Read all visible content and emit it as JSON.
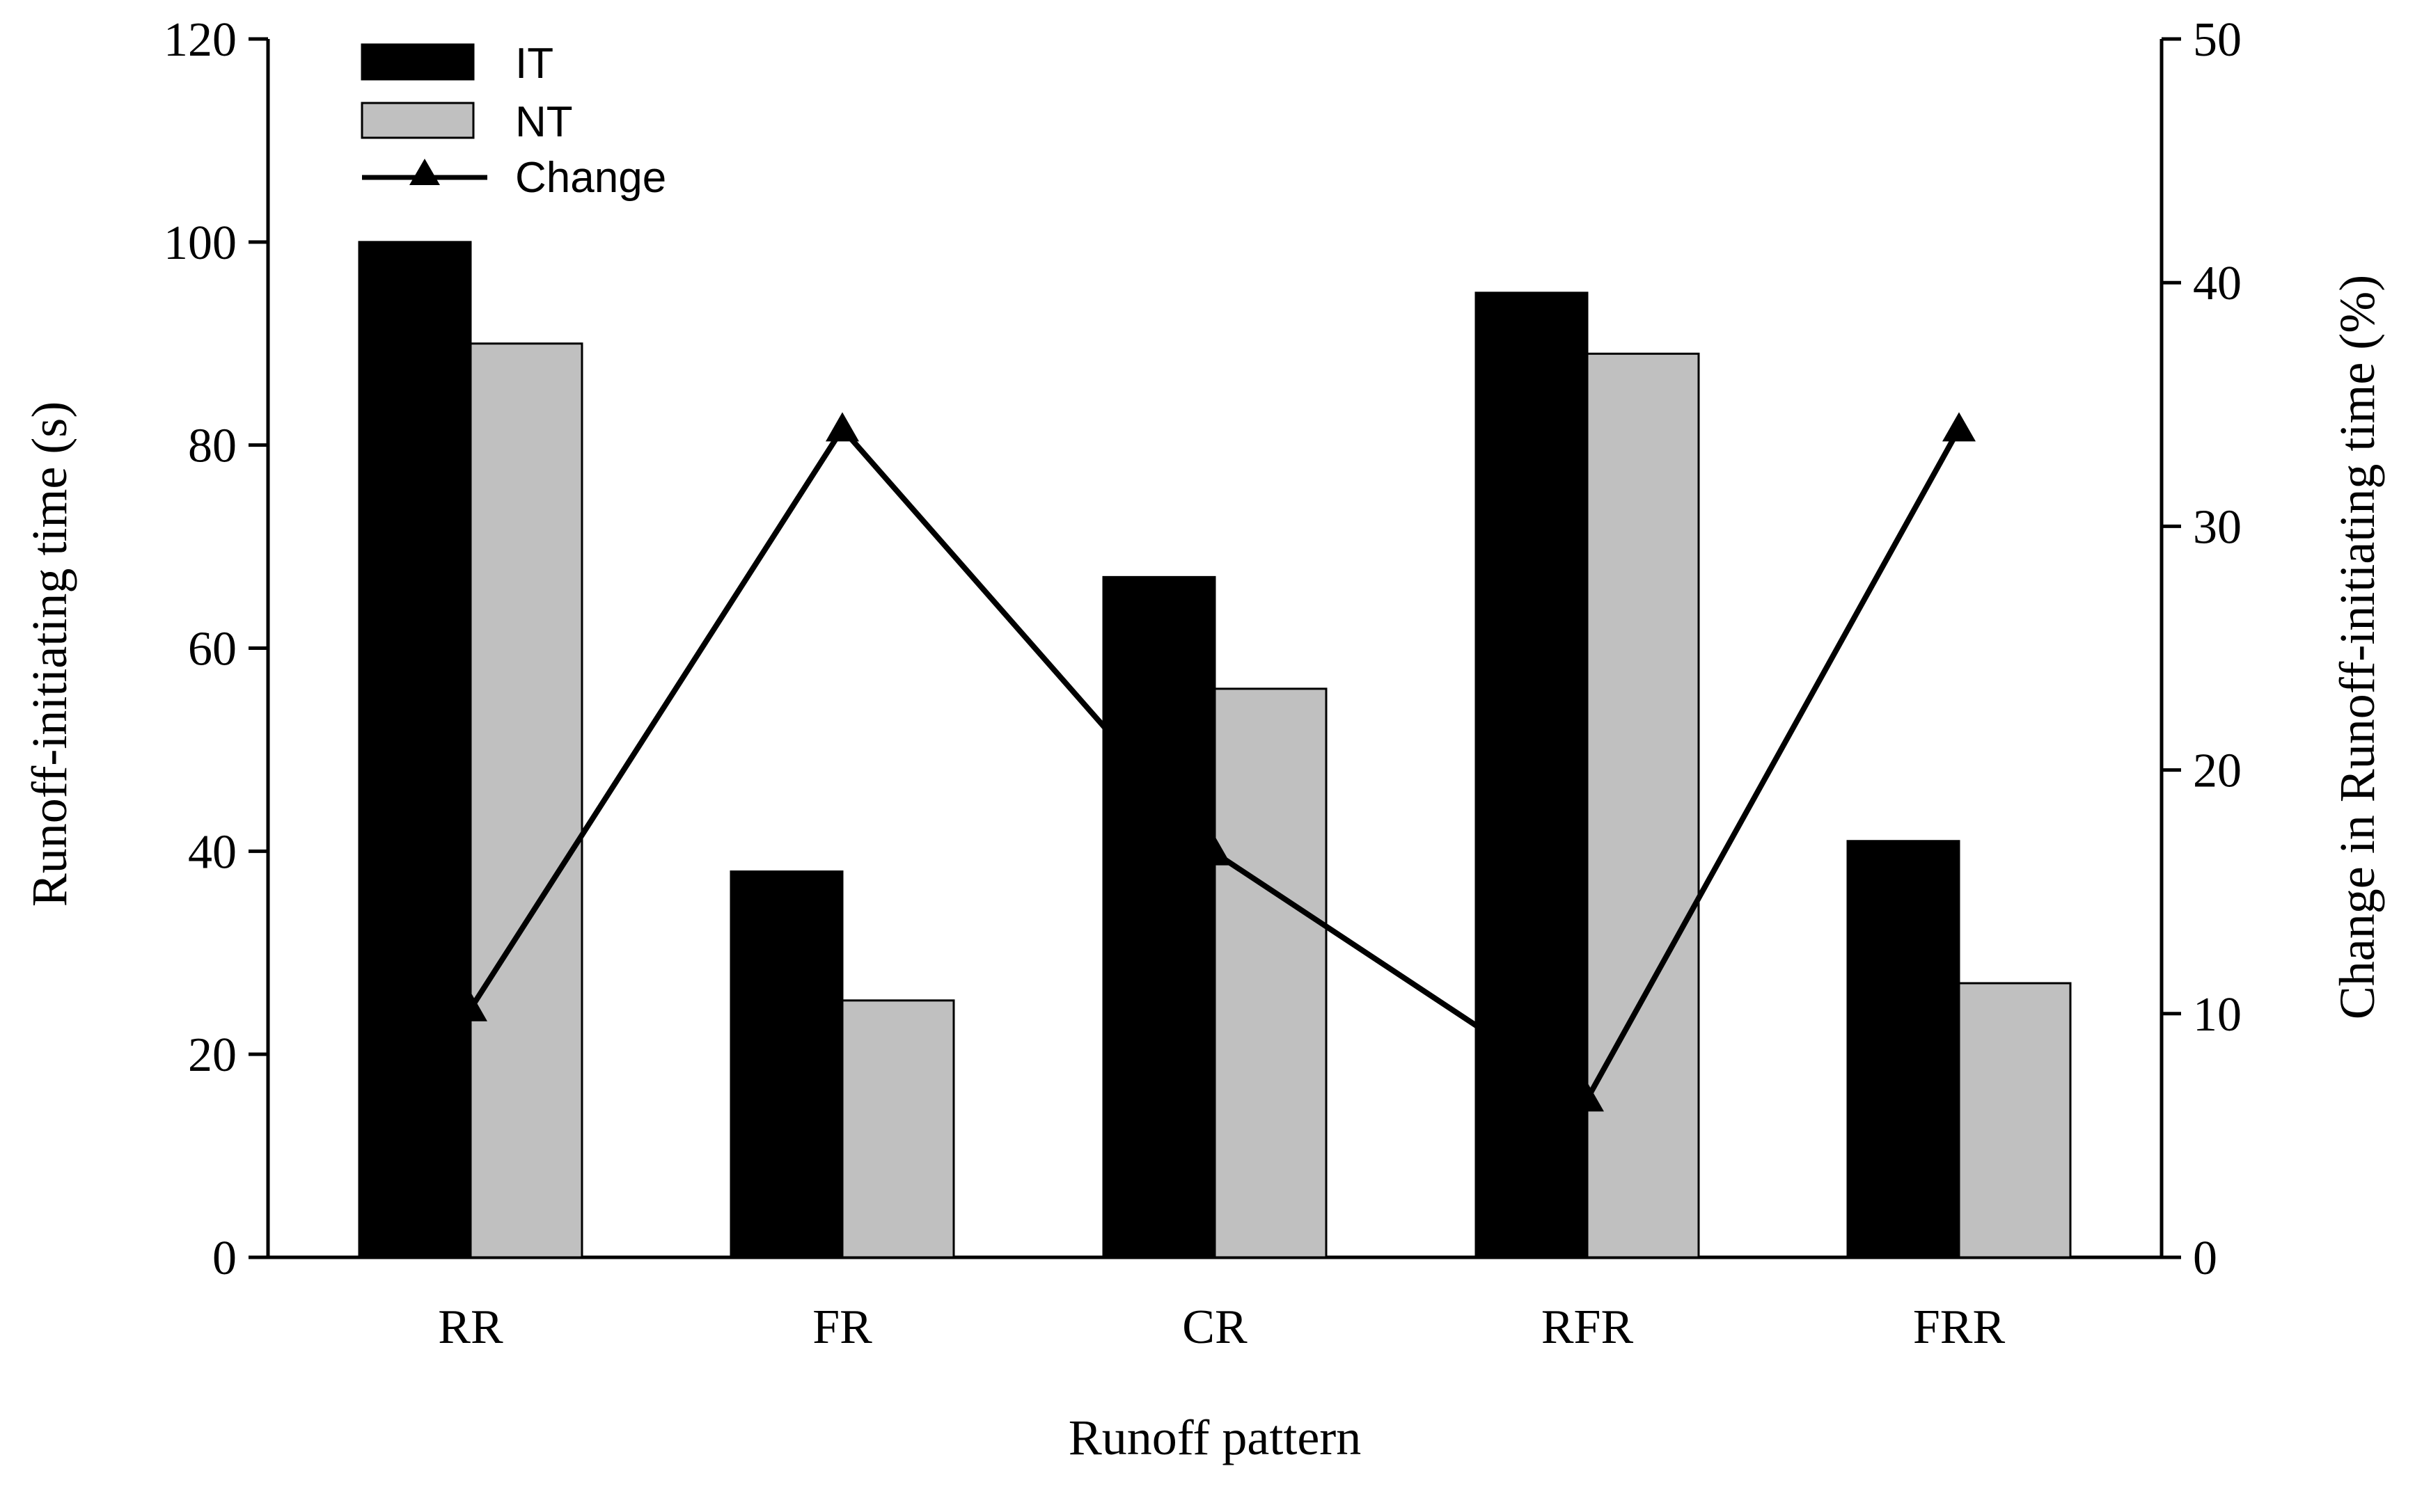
{
  "chart_data": {
    "type": "bar",
    "title": "",
    "xlabel": "Runoff pattern",
    "ylabel": "Runoff-initiating time (s)",
    "y2label": "Change in Runoff-initiating time (%)",
    "categories": [
      "RR",
      "FR",
      "CR",
      "RFR",
      "FRR"
    ],
    "ylim": [
      0,
      120
    ],
    "y2lim": [
      0,
      50
    ],
    "yticks": [
      "0",
      "20",
      "40",
      "60",
      "80",
      "100",
      "120"
    ],
    "y2ticks": [
      "0",
      "10",
      "20",
      "30",
      "40",
      "50"
    ],
    "legend_position": "top-left",
    "series": [
      {
        "name": "IT",
        "type": "bar",
        "axis": "left",
        "color": "#000000",
        "values": [
          100,
          38,
          67,
          95,
          41
        ]
      },
      {
        "name": "NT",
        "type": "bar",
        "axis": "left",
        "color": "#c0c0c0",
        "values": [
          90,
          25.3,
          56,
          89,
          27
        ]
      },
      {
        "name": "Change",
        "type": "line",
        "marker": "triangle",
        "axis": "right",
        "color": "#000000",
        "values": [
          10.2,
          34,
          16.6,
          6.5,
          34
        ]
      }
    ],
    "grid": false
  }
}
